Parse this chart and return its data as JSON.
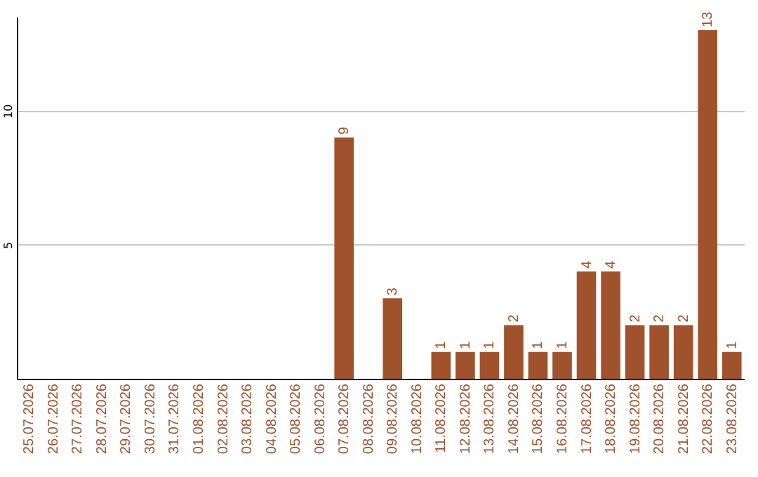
{
  "chart_data": {
    "type": "bar",
    "categories": [
      "25.07.2026",
      "26.07.2026",
      "27.07.2026",
      "28.07.2026",
      "29.07.2026",
      "30.07.2026",
      "31.07.2026",
      "01.08.2026",
      "02.08.2026",
      "03.08.2026",
      "04.08.2026",
      "05.08.2026",
      "06.08.2026",
      "07.08.2026",
      "08.08.2026",
      "09.08.2026",
      "10.08.2026",
      "11.08.2026",
      "12.08.2026",
      "13.08.2026",
      "14.08.2026",
      "15.08.2026",
      "16.08.2026",
      "17.08.2026",
      "18.08.2026",
      "19.08.2026",
      "20.08.2026",
      "21.08.2026",
      "22.08.2026",
      "23.08.2026"
    ],
    "values": [
      0,
      0,
      0,
      0,
      0,
      0,
      0,
      0,
      0,
      0,
      0,
      0,
      0,
      9,
      0,
      3,
      0,
      1,
      1,
      1,
      2,
      1,
      1,
      4,
      4,
      2,
      2,
      2,
      13,
      1
    ],
    "value_labels": [
      null,
      null,
      null,
      null,
      null,
      null,
      null,
      null,
      null,
      null,
      null,
      null,
      null,
      "9",
      null,
      "3",
      null,
      "1",
      "1",
      "1",
      "2",
      "1",
      "1",
      "4",
      "4",
      "2",
      "2",
      "2",
      "13",
      "1"
    ],
    "color": "#a0522d",
    "ylim": [
      0,
      13.5
    ],
    "yticks": [
      5,
      10
    ],
    "grid": "y"
  }
}
